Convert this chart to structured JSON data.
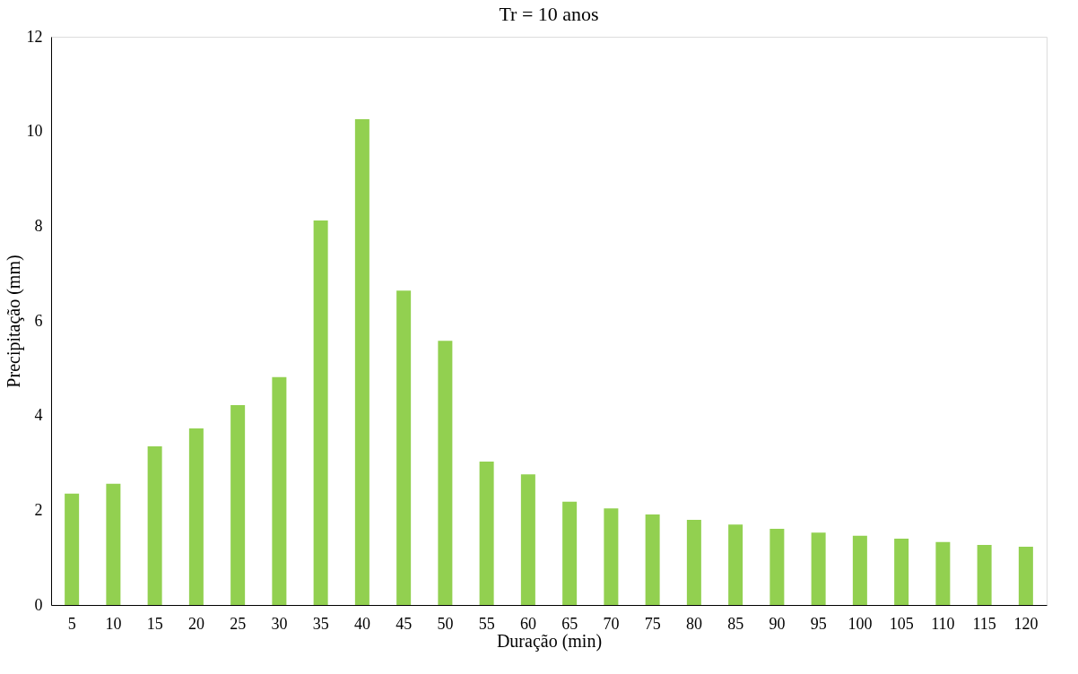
{
  "chart_data": {
    "type": "bar",
    "title": "Tr = 10 anos",
    "xlabel": "Duração (min)",
    "ylabel": "Precipitação (mm)",
    "categories": [
      "5",
      "10",
      "15",
      "20",
      "25",
      "30",
      "35",
      "40",
      "45",
      "50",
      "55",
      "60",
      "65",
      "70",
      "75",
      "80",
      "85",
      "90",
      "95",
      "100",
      "105",
      "110",
      "115",
      "120"
    ],
    "values": [
      2.35,
      2.56,
      3.35,
      3.73,
      4.22,
      4.81,
      8.12,
      10.26,
      6.64,
      5.58,
      3.03,
      2.76,
      2.18,
      2.04,
      1.91,
      1.8,
      1.7,
      1.61,
      1.53,
      1.46,
      1.4,
      1.33,
      1.27,
      1.23
    ],
    "color": "#92d050",
    "ylim": [
      0,
      12
    ],
    "yticks": [
      0,
      2,
      4,
      6,
      8,
      10,
      12
    ],
    "grid": false
  }
}
